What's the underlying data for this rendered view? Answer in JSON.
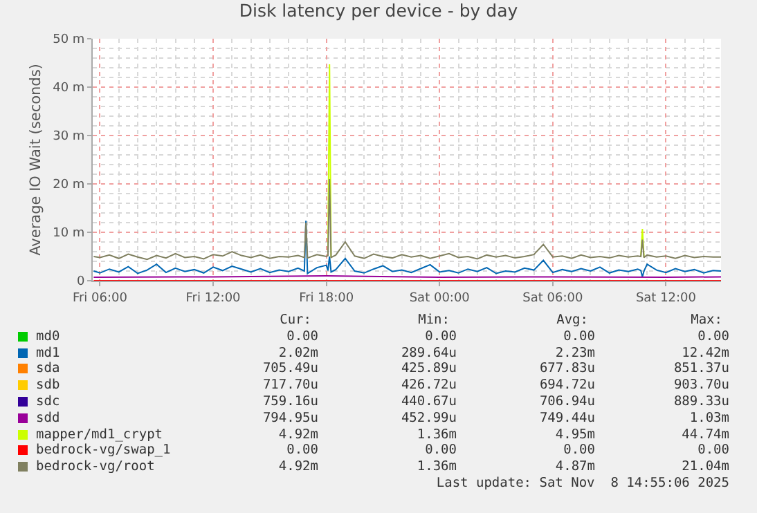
{
  "chart_data": {
    "type": "line",
    "title": "Disk latency per device - by day",
    "ylabel": "Average IO Wait (seconds)",
    "x": [
      "2025-11-07T05:40",
      "2025-11-07T06:00",
      "2025-11-07T06:30",
      "2025-11-07T07:00",
      "2025-11-07T07:30",
      "2025-11-07T08:00",
      "2025-11-07T08:30",
      "2025-11-07T09:00",
      "2025-11-07T09:30",
      "2025-11-07T10:00",
      "2025-11-07T10:30",
      "2025-11-07T11:00",
      "2025-11-07T11:30",
      "2025-11-07T12:00",
      "2025-11-07T12:30",
      "2025-11-07T13:00",
      "2025-11-07T13:30",
      "2025-11-07T14:00",
      "2025-11-07T14:30",
      "2025-11-07T15:00",
      "2025-11-07T15:30",
      "2025-11-07T16:00",
      "2025-11-07T16:30",
      "2025-11-07T16:50",
      "2025-11-07T16:55",
      "2025-11-07T17:00",
      "2025-11-07T17:30",
      "2025-11-07T18:00",
      "2025-11-07T18:05",
      "2025-11-07T18:10",
      "2025-11-07T18:15",
      "2025-11-07T18:30",
      "2025-11-07T19:00",
      "2025-11-07T19:30",
      "2025-11-07T20:00",
      "2025-11-07T20:30",
      "2025-11-07T21:00",
      "2025-11-07T21:30",
      "2025-11-07T22:00",
      "2025-11-07T22:30",
      "2025-11-07T23:00",
      "2025-11-07T23:30",
      "2025-11-08T00:00",
      "2025-11-08T00:30",
      "2025-11-08T01:00",
      "2025-11-08T01:30",
      "2025-11-08T02:00",
      "2025-11-08T02:30",
      "2025-11-08T03:00",
      "2025-11-08T03:30",
      "2025-11-08T04:00",
      "2025-11-08T04:30",
      "2025-11-08T05:00",
      "2025-11-08T05:30",
      "2025-11-08T06:00",
      "2025-11-08T06:30",
      "2025-11-08T07:00",
      "2025-11-08T07:30",
      "2025-11-08T08:00",
      "2025-11-08T08:30",
      "2025-11-08T09:00",
      "2025-11-08T09:30",
      "2025-11-08T10:00",
      "2025-11-08T10:30",
      "2025-11-08T10:40",
      "2025-11-08T10:45",
      "2025-11-08T10:50",
      "2025-11-08T11:00",
      "2025-11-08T11:30",
      "2025-11-08T12:00",
      "2025-11-08T12:30",
      "2025-11-08T13:00",
      "2025-11-08T13:30",
      "2025-11-08T14:00",
      "2025-11-08T14:30",
      "2025-11-08T14:55"
    ],
    "series": [
      {
        "name": "md0",
        "color": "#00cc00",
        "values": [
          null,
          null,
          null,
          null,
          null,
          null,
          null,
          null,
          null,
          null,
          null,
          null,
          null,
          null,
          null,
          null,
          null,
          null,
          null,
          null,
          null,
          null,
          null,
          null,
          null,
          null,
          null,
          null,
          null,
          null,
          null,
          null,
          null,
          null,
          null,
          null,
          null,
          null,
          null,
          null,
          null,
          null,
          null,
          null,
          null,
          null,
          null,
          null,
          null,
          null,
          null,
          null,
          null,
          null,
          null,
          null,
          null,
          null,
          null,
          null,
          null,
          null,
          null,
          null,
          null,
          null,
          null,
          null,
          null,
          null,
          null,
          null,
          null,
          null,
          null,
          null
        ]
      },
      {
        "name": "md1",
        "color": "#0066b3",
        "values": [
          2.0,
          1.6,
          2.4,
          1.8,
          2.9,
          1.5,
          2.2,
          3.4,
          1.7,
          2.6,
          1.9,
          2.3,
          1.6,
          2.8,
          2.1,
          3.0,
          2.4,
          1.8,
          2.5,
          1.7,
          2.2,
          1.9,
          2.6,
          2.0,
          12.4,
          1.5,
          2.7,
          3.2,
          2.1,
          5.0,
          1.8,
          2.3,
          4.6,
          2.0,
          1.6,
          2.4,
          3.1,
          1.9,
          2.2,
          1.7,
          2.5,
          3.3,
          1.8,
          2.1,
          1.6,
          2.4,
          1.9,
          2.7,
          1.5,
          2.0,
          1.8,
          2.6,
          2.2,
          4.2,
          1.7,
          2.3,
          1.9,
          2.5,
          2.0,
          2.8,
          1.6,
          2.2,
          1.9,
          2.4,
          2.1,
          0.8,
          2.0,
          3.4,
          2.2,
          1.7,
          2.5,
          1.9,
          2.3,
          1.6,
          2.1,
          2.0
        ]
      },
      {
        "name": "sda",
        "color": "#ff8000",
        "values": [
          null,
          null,
          null,
          null,
          null,
          null,
          null,
          null,
          null,
          null,
          null,
          null,
          null,
          null,
          null,
          null,
          null,
          null,
          null,
          null,
          null,
          null,
          null,
          null,
          null,
          null,
          null,
          null,
          null,
          null,
          null,
          null,
          null,
          null,
          null,
          null,
          null,
          null,
          null,
          null,
          null,
          null,
          null,
          null,
          null,
          null,
          null,
          null,
          null,
          null,
          null,
          null,
          null,
          null,
          null,
          null,
          null,
          null,
          null,
          null,
          null,
          null,
          null,
          null,
          null,
          null,
          null,
          null,
          null,
          null,
          null,
          null,
          null,
          null,
          null,
          null
        ]
      },
      {
        "name": "sdb",
        "color": "#ffcc00",
        "values": [
          null,
          null,
          null,
          null,
          null,
          null,
          null,
          null,
          null,
          null,
          null,
          null,
          null,
          null,
          null,
          null,
          null,
          null,
          null,
          null,
          null,
          null,
          null,
          null,
          null,
          null,
          null,
          null,
          null,
          null,
          null,
          null,
          null,
          null,
          null,
          null,
          null,
          null,
          null,
          null,
          null,
          null,
          null,
          null,
          null,
          null,
          null,
          null,
          null,
          null,
          null,
          null,
          null,
          null,
          null,
          null,
          null,
          null,
          null,
          null,
          null,
          null,
          null,
          null,
          null,
          null,
          null,
          null,
          null,
          null,
          null,
          null,
          null,
          null,
          null,
          null
        ]
      },
      {
        "name": "sdc",
        "color": "#330099",
        "values": [
          null,
          null,
          null,
          null,
          null,
          null,
          null,
          null,
          null,
          null,
          null,
          null,
          null,
          null,
          null,
          null,
          null,
          null,
          null,
          null,
          null,
          null,
          null,
          null,
          null,
          null,
          null,
          null,
          null,
          null,
          null,
          null,
          null,
          null,
          null,
          null,
          null,
          null,
          null,
          null,
          null,
          null,
          null,
          null,
          null,
          null,
          null,
          null,
          null,
          null,
          null,
          null,
          null,
          null,
          null,
          null,
          null,
          null,
          null,
          null,
          null,
          null,
          null,
          null,
          null,
          null,
          null,
          null,
          null,
          null,
          null,
          null,
          null,
          null,
          null,
          null
        ]
      },
      {
        "name": "sdd",
        "color": "#990099",
        "x": [
          "2025-11-07T05:40",
          "2025-11-07T12:00",
          "2025-11-07T18:00",
          "2025-11-08T00:00",
          "2025-11-08T06:00",
          "2025-11-08T12:00",
          "2025-11-08T14:55"
        ],
        "values": [
          0.7,
          0.8,
          1.0,
          0.7,
          0.8,
          0.7,
          0.8
        ]
      },
      {
        "name": "mapper/md1_crypt",
        "color": "#ccff00",
        "values": [
          null,
          null,
          null,
          null,
          null,
          null,
          null,
          null,
          null,
          null,
          null,
          null,
          null,
          null,
          null,
          null,
          null,
          null,
          null,
          null,
          null,
          null,
          null,
          null,
          null,
          null,
          null,
          null,
          5.2,
          44.7,
          4.8,
          null,
          null,
          null,
          null,
          null,
          null,
          null,
          null,
          null,
          null,
          null,
          null,
          null,
          null,
          null,
          null,
          null,
          null,
          null,
          null,
          null,
          null,
          null,
          null,
          null,
          null,
          null,
          null,
          null,
          null,
          null,
          null,
          null,
          5.0,
          10.7,
          4.8,
          null,
          null,
          null,
          null,
          null,
          null,
          null,
          null,
          null
        ]
      },
      {
        "name": "bedrock-vg/swap_1",
        "color": "#ff0000",
        "x": [
          "2025-11-07T05:40",
          "2025-11-08T14:55"
        ],
        "values": [
          0,
          0
        ]
      },
      {
        "name": "bedrock-vg/root",
        "color": "#808060",
        "values": [
          5.0,
          4.8,
          5.3,
          4.6,
          5.5,
          4.9,
          4.4,
          5.2,
          4.7,
          5.6,
          4.8,
          5.0,
          4.5,
          5.4,
          5.1,
          6.0,
          5.2,
          4.8,
          5.3,
          4.6,
          5.0,
          4.9,
          5.2,
          4.8,
          12.0,
          4.7,
          5.4,
          5.0,
          5.2,
          21.0,
          4.8,
          5.3,
          8.0,
          5.1,
          4.6,
          5.5,
          5.0,
          4.7,
          5.4,
          4.9,
          5.2,
          4.6,
          5.1,
          5.6,
          4.8,
          5.0,
          4.5,
          5.3,
          4.9,
          5.2,
          4.7,
          5.0,
          5.4,
          7.5,
          4.9,
          5.1,
          4.6,
          5.3,
          4.8,
          5.0,
          4.7,
          5.2,
          4.9,
          5.1,
          5.0,
          8.5,
          4.8,
          5.3,
          4.9,
          5.1,
          4.6,
          5.2,
          4.8,
          5.0,
          4.9,
          4.9
        ]
      }
    ],
    "xlim": [
      "2025-11-07T05:37",
      "2025-11-08T14:55"
    ],
    "xticks": [
      {
        "value": "2025-11-07T06:00",
        "label": "Fri 06:00"
      },
      {
        "value": "2025-11-07T12:00",
        "label": "Fri 12:00"
      },
      {
        "value": "2025-11-07T18:00",
        "label": "Fri 18:00"
      },
      {
        "value": "2025-11-08T00:00",
        "label": "Sat 00:00"
      },
      {
        "value": "2025-11-08T06:00",
        "label": "Sat 06:00"
      },
      {
        "value": "2025-11-08T12:00",
        "label": "Sat 12:00"
      }
    ],
    "ylim": [
      0,
      50
    ],
    "yticks": [
      0,
      {
        "value": 10,
        "label": "10 m"
      },
      {
        "value": 20,
        "label": "20 m"
      },
      {
        "value": 30,
        "label": "30 m"
      },
      {
        "value": 40,
        "label": "40 m"
      },
      {
        "value": 50,
        "label": "50 m"
      }
    ],
    "grid": true,
    "legend": "bottom",
    "marker": "none",
    "line_style": "solid",
    "annotations": [
      "Cur:",
      "Min:",
      "Avg:",
      "Max:",
      "0.00",
      "0.00",
      "0.00",
      "0.00",
      "2.02m",
      "289.64u",
      "2.23m",
      "12.42m",
      "705.49u",
      "425.89u",
      "677.83u",
      "851.37u",
      "717.70u",
      "426.72u",
      "694.72u",
      "903.70u",
      "759.16u",
      "440.67u",
      "706.94u",
      "889.33u",
      "794.95u",
      "452.99u",
      "749.44u",
      "1.03m",
      "4.92m",
      "1.36m",
      "4.95m",
      "44.74m",
      "0.00",
      "0.00",
      "0.00",
      "0.00",
      "4.92m",
      "1.36m",
      "4.87m",
      "21.04m",
      "Last update: Sat Nov  8 14:55:06 2025"
    ]
  }
}
